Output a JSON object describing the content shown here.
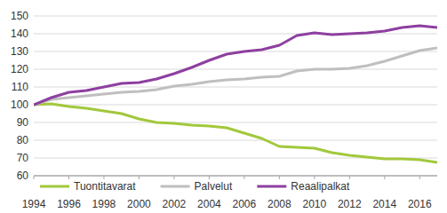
{
  "chart_data": {
    "type": "line",
    "x": [
      1994,
      1995,
      1996,
      1997,
      1998,
      1999,
      2000,
      2001,
      2002,
      2003,
      2004,
      2005,
      2006,
      2007,
      2008,
      2009,
      2010,
      2011,
      2012,
      2013,
      2014,
      2015,
      2016,
      2017
    ],
    "series": [
      {
        "name": "Tuontitavarat",
        "color": "#a2c83c",
        "values": [
          100,
          100.5,
          99,
          98,
          96.5,
          95,
          92,
          90,
          89.5,
          88.5,
          88,
          87,
          84,
          81,
          76.5,
          76,
          75.5,
          73,
          71.5,
          70.5,
          69.5,
          69.5,
          69,
          67.5
        ]
      },
      {
        "name": "Palvelut",
        "color": "#bfbfbf",
        "values": [
          100,
          103,
          104,
          105,
          106,
          107,
          107.5,
          108.5,
          110.5,
          111.5,
          113,
          114,
          114.5,
          115.5,
          116,
          119,
          120,
          120,
          120.5,
          122,
          124.5,
          127.5,
          130.5,
          132
        ]
      },
      {
        "name": "Reaalipalkat",
        "color": "#8e3fa0",
        "values": [
          100,
          104,
          107,
          108,
          110,
          112,
          112.5,
          114.5,
          117.5,
          121,
          125,
          128.5,
          130,
          131,
          133.5,
          139,
          140.5,
          139.5,
          140,
          140.5,
          141.5,
          143.5,
          144.5,
          143.5
        ]
      }
    ],
    "xlim": [
      1994,
      2017
    ],
    "xticks": [
      1994,
      1996,
      1998,
      2000,
      2002,
      2004,
      2006,
      2008,
      2010,
      2012,
      2014,
      2016
    ],
    "ylim": [
      60,
      150
    ],
    "yticks": [
      60,
      70,
      80,
      90,
      100,
      110,
      120,
      130,
      140,
      150
    ],
    "grid": true,
    "legend": "bottom"
  }
}
